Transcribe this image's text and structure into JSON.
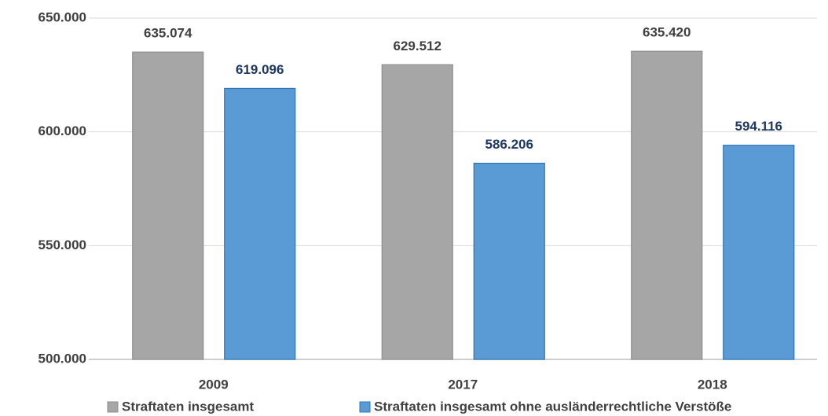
{
  "chart_data": {
    "type": "bar",
    "categories": [
      "2009",
      "2017",
      "2018"
    ],
    "series": [
      {
        "name": "Straftaten insgesamt",
        "color": "#a6a6a6",
        "label_color": "#404040",
        "values": [
          635074,
          629512,
          635420
        ],
        "value_labels": [
          "635.074",
          "629.512",
          "635.420"
        ]
      },
      {
        "name": "Straftaten insgesamt ohne ausländerrechtliche Verstöße",
        "color": "#5b9bd5",
        "label_color": "#1f3864",
        "values": [
          619096,
          586206,
          594116
        ],
        "value_labels": [
          "619.096",
          "586.206",
          "594.116"
        ]
      }
    ],
    "ylim": [
      500000,
      650000
    ],
    "yticks": [
      {
        "value": 500000,
        "label": "500.000"
      },
      {
        "value": 550000,
        "label": "550.000"
      },
      {
        "value": 600000,
        "label": "600.000"
      },
      {
        "value": 650000,
        "label": "650.000"
      }
    ],
    "grid": true,
    "legend": "bottom"
  }
}
